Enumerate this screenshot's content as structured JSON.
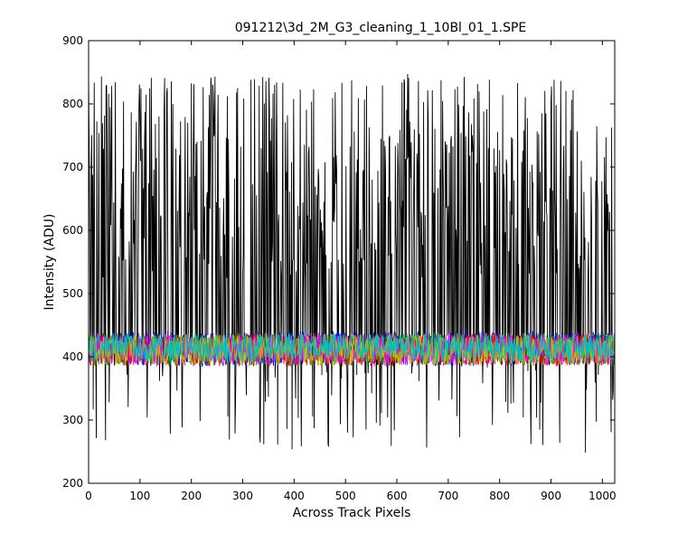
{
  "chart_data": {
    "type": "line",
    "title": "091212\\3d_2M_G3_cleaning_1_10Bl_01_1.SPE",
    "xlabel": "Across Track Pixels",
    "ylabel": "Intensity (ADU)",
    "xlim": [
      0,
      1024
    ],
    "ylim": [
      200,
      900
    ],
    "xticks": [
      0,
      100,
      200,
      300,
      400,
      500,
      600,
      700,
      800,
      900,
      1000
    ],
    "yticks": [
      200,
      300,
      400,
      500,
      600,
      700,
      800,
      900
    ],
    "grid": false,
    "legend": false,
    "n_points": 1024,
    "series": [
      {
        "color": "#000000",
        "style": "high-variance",
        "baseline": 410,
        "min": 248,
        "max": 868
      },
      {
        "color": "#0000ff",
        "style": "noise",
        "baseline": 413,
        "min": 378,
        "max": 452
      },
      {
        "color": "#00a000",
        "style": "noise",
        "baseline": 412,
        "min": 380,
        "max": 450
      },
      {
        "color": "#ff0000",
        "style": "noise",
        "baseline": 411,
        "min": 378,
        "max": 448
      },
      {
        "color": "#ff00ff",
        "style": "noise",
        "baseline": 412,
        "min": 382,
        "max": 450
      },
      {
        "color": "#c0c000",
        "style": "noise",
        "baseline": 411,
        "min": 380,
        "max": 446
      },
      {
        "color": "#00c0c0",
        "style": "noise",
        "baseline": 415,
        "min": 384,
        "max": 444
      }
    ]
  }
}
